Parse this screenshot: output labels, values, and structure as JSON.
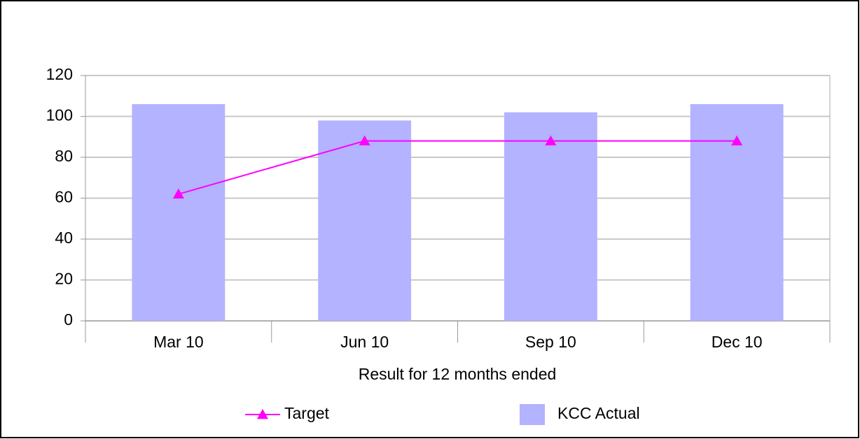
{
  "chart_data": {
    "type": "bar",
    "x_label": "Result for 12 months ended",
    "categories": [
      "Mar 10",
      "Jun 10",
      "Sep 10",
      "Dec 10"
    ],
    "series": [
      {
        "name": "Target",
        "type": "line",
        "color": "#ff00ff",
        "values": [
          62,
          88,
          88,
          88
        ]
      },
      {
        "name": "KCC Actual",
        "type": "bar",
        "color": "#b3b3ff",
        "values": [
          106,
          98,
          102,
          106
        ]
      }
    ],
    "ylim": [
      0,
      120
    ],
    "yticks": [
      0,
      20,
      40,
      60,
      80,
      100,
      120
    ],
    "grid": true,
    "legend": "bottom"
  }
}
